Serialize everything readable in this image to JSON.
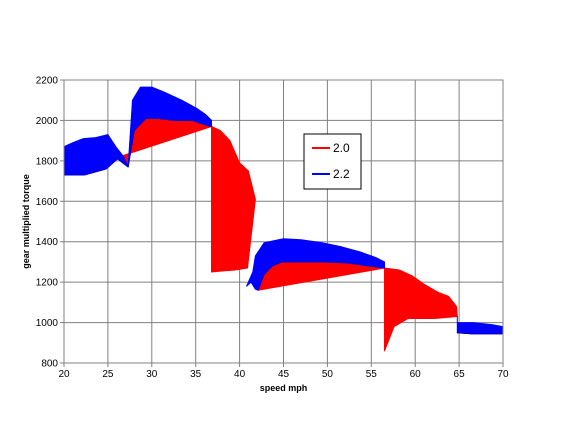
{
  "chart_data": {
    "type": "area",
    "title": "",
    "xlabel": "speed mph",
    "ylabel": "gear multiplied torque",
    "xlim": [
      20,
      70
    ],
    "ylim": [
      800,
      2200
    ],
    "x_ticks": [
      20,
      25,
      30,
      35,
      40,
      45,
      50,
      55,
      60,
      65,
      70
    ],
    "y_ticks": [
      800,
      1000,
      1200,
      1400,
      1600,
      1800,
      2000,
      2200
    ],
    "grid": true,
    "legend_position": "inside-right",
    "legend_labels": [
      "2.0",
      "2.2"
    ],
    "colors": {
      "red": "#ff0000",
      "blue": "#0000ff"
    },
    "series": [
      {
        "name": "2.0",
        "color": "#ff0000",
        "segments": [
          [
            [
              20,
              1730
            ],
            [
              22.3,
              1730
            ],
            [
              24.8,
              1760
            ],
            [
              26.1,
              1810
            ],
            [
              27.3,
              1770
            ],
            [
              28.0,
              1950
            ],
            [
              29.3,
              2010
            ],
            [
              30.7,
              2010
            ],
            [
              32.6,
              2000
            ],
            [
              34.6,
              2000
            ],
            [
              36.0,
              1980
            ],
            [
              36.8,
              1970
            ]
          ],
          [
            [
              36.8,
              1970
            ],
            [
              37.8,
              1950
            ],
            [
              38.9,
              1900
            ],
            [
              40.0,
              1790
            ],
            [
              41.0,
              1750
            ],
            [
              41.8,
              1610
            ],
            [
              40.9,
              1270
            ],
            [
              39.5,
              1260
            ],
            [
              38.0,
              1255
            ],
            [
              36.8,
              1250
            ]
          ],
          [
            [
              42.1,
              1160
            ],
            [
              42.8,
              1240
            ],
            [
              43.7,
              1280
            ],
            [
              44.8,
              1300
            ],
            [
              46.6,
              1300
            ],
            [
              49.6,
              1300
            ],
            [
              52.3,
              1295
            ],
            [
              54.8,
              1280
            ],
            [
              56.5,
              1270
            ]
          ],
          [
            [
              56.5,
              1270
            ],
            [
              58.2,
              1260
            ],
            [
              59.7,
              1230
            ],
            [
              61.0,
              1190
            ],
            [
              62.6,
              1150
            ],
            [
              63.8,
              1130
            ],
            [
              64.7,
              1080
            ],
            [
              64.8,
              1030
            ],
            [
              62.2,
              1020
            ],
            [
              59.2,
              1020
            ],
            [
              57.6,
              980
            ],
            [
              56.5,
              860
            ]
          ],
          [
            [
              64.8,
              950
            ],
            [
              66.4,
              945
            ],
            [
              68.6,
              945
            ],
            [
              70,
              945
            ]
          ]
        ]
      },
      {
        "name": "2.2",
        "color": "#0000ff",
        "segments": [
          [
            [
              20,
              1870
            ],
            [
              21.0,
              1890
            ],
            [
              22.2,
              1910
            ],
            [
              23.6,
              1915
            ],
            [
              25.0,
              1930
            ],
            [
              25.9,
              1870
            ],
            [
              26.8,
              1820
            ],
            [
              27.3,
              1770
            ],
            [
              26.1,
              1810
            ],
            [
              24.8,
              1760
            ],
            [
              22.3,
              1730
            ],
            [
              20,
              1730
            ]
          ],
          [
            [
              27.3,
              1770
            ],
            [
              27.8,
              2100
            ],
            [
              28.7,
              2165
            ],
            [
              30.0,
              2165
            ],
            [
              31.4,
              2140
            ],
            [
              33.4,
              2100
            ],
            [
              35.1,
              2060
            ],
            [
              36.1,
              2030
            ],
            [
              36.8,
              2000
            ],
            [
              36.8,
              1970
            ],
            [
              36.0,
              1980
            ],
            [
              34.6,
              2000
            ],
            [
              32.6,
              2000
            ],
            [
              30.7,
              2010
            ],
            [
              29.3,
              2010
            ],
            [
              28.0,
              1950
            ]
          ],
          [
            [
              40.8,
              1180
            ],
            [
              41.5,
              1250
            ],
            [
              41.8,
              1330
            ],
            [
              42.8,
              1395
            ],
            [
              45.0,
              1415
            ],
            [
              47.0,
              1410
            ],
            [
              49.4,
              1395
            ],
            [
              51.6,
              1375
            ],
            [
              53.7,
              1350
            ],
            [
              55.6,
              1320
            ],
            [
              56.5,
              1300
            ],
            [
              56.5,
              1270
            ],
            [
              54.8,
              1280
            ],
            [
              52.3,
              1295
            ],
            [
              49.6,
              1300
            ],
            [
              46.6,
              1300
            ],
            [
              44.8,
              1300
            ],
            [
              43.7,
              1280
            ],
            [
              42.8,
              1240
            ],
            [
              42.1,
              1160
            ],
            [
              41.8,
              1165
            ],
            [
              41.3,
              1200
            ]
          ],
          [
            [
              64.8,
              1030
            ],
            [
              64.8,
              1000
            ],
            [
              66.6,
              1000
            ],
            [
              68.7,
              990
            ],
            [
              70,
              980
            ],
            [
              70,
              945
            ],
            [
              68.6,
              945
            ],
            [
              66.4,
              945
            ],
            [
              64.8,
              950
            ]
          ]
        ]
      }
    ]
  }
}
